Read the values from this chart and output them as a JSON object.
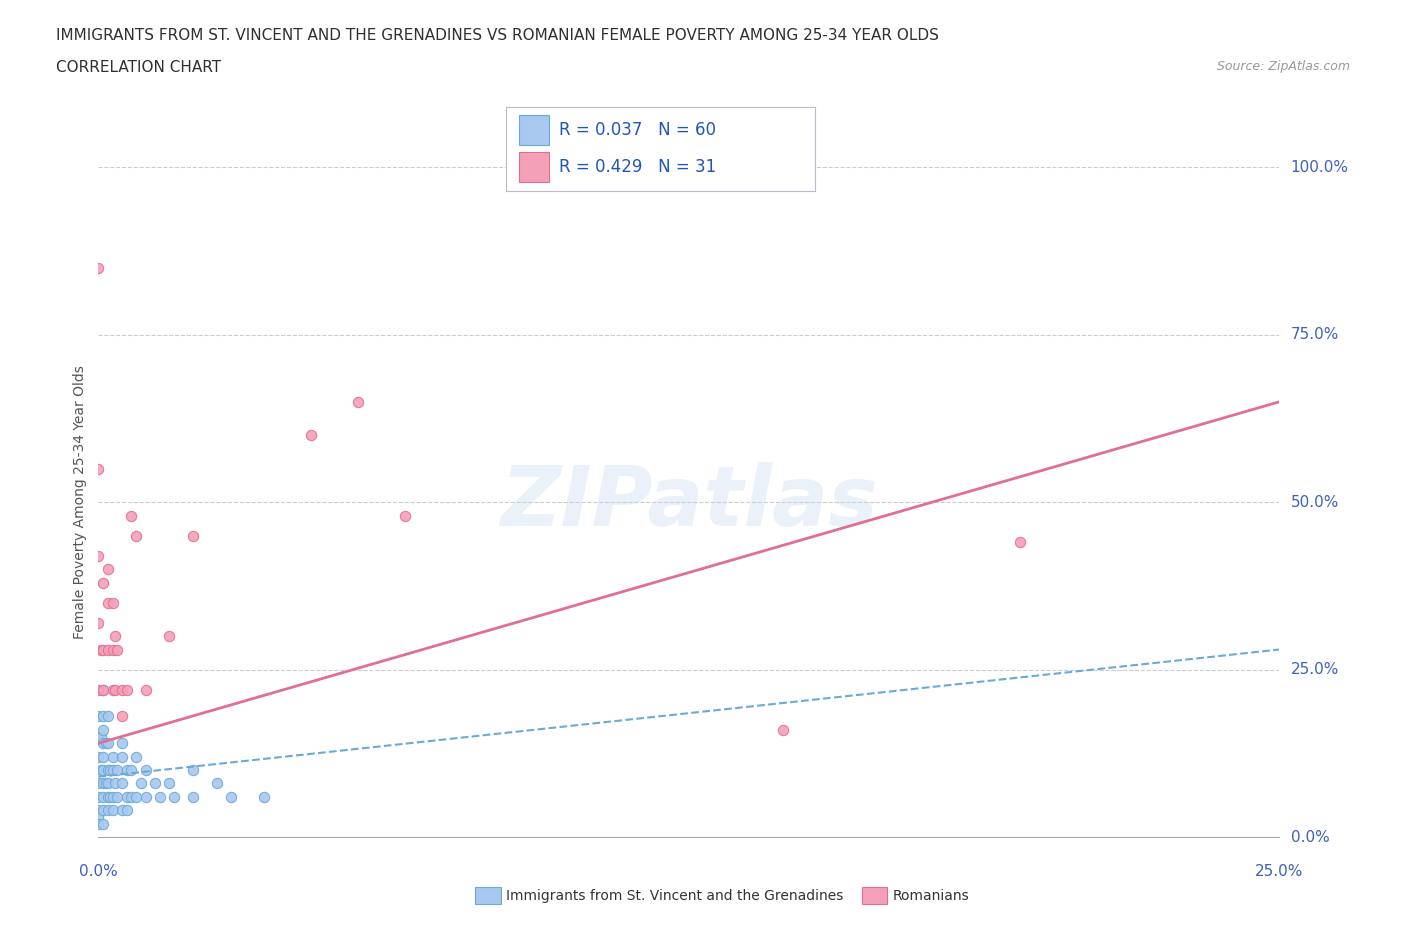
{
  "title_line1": "IMMIGRANTS FROM ST. VINCENT AND THE GRENADINES VS ROMANIAN FEMALE POVERTY AMONG 25-34 YEAR OLDS",
  "title_line2": "CORRELATION CHART",
  "source": "Source: ZipAtlas.com",
  "ylabel": "Female Poverty Among 25-34 Year Olds",
  "y_ticks_labels": [
    "0.0%",
    "25.0%",
    "50.0%",
    "75.0%",
    "100.0%"
  ],
  "y_tick_vals": [
    0,
    25,
    50,
    75,
    100
  ],
  "x_range": [
    0,
    25
  ],
  "y_range": [
    0,
    100
  ],
  "watermark_text": "ZIPatlas",
  "blue_R": 0.037,
  "blue_N": 60,
  "pink_R": 0.429,
  "pink_N": 31,
  "blue_color": "#a8c8f0",
  "pink_color": "#f4a0b8",
  "blue_edge": "#6aaad8",
  "pink_edge": "#e07090",
  "blue_scatter_x": [
    0.0,
    0.0,
    0.0,
    0.0,
    0.0,
    0.0,
    0.0,
    0.0,
    0.05,
    0.05,
    0.1,
    0.1,
    0.1,
    0.1,
    0.1,
    0.1,
    0.1,
    0.1,
    0.1,
    0.1,
    0.15,
    0.15,
    0.2,
    0.2,
    0.2,
    0.2,
    0.2,
    0.2,
    0.25,
    0.25,
    0.3,
    0.3,
    0.3,
    0.3,
    0.35,
    0.4,
    0.4,
    0.5,
    0.5,
    0.5,
    0.5,
    0.6,
    0.6,
    0.6,
    0.7,
    0.7,
    0.8,
    0.8,
    0.9,
    1.0,
    1.0,
    1.2,
    1.3,
    1.5,
    1.6,
    2.0,
    2.0,
    2.5,
    2.8,
    3.5
  ],
  "blue_scatter_y": [
    18.0,
    15.0,
    12.0,
    8.0,
    6.0,
    4.0,
    3.0,
    2.0,
    15.0,
    10.0,
    22.0,
    18.0,
    16.0,
    14.0,
    12.0,
    10.0,
    8.0,
    6.0,
    4.0,
    2.0,
    14.0,
    8.0,
    18.0,
    14.0,
    10.0,
    8.0,
    6.0,
    4.0,
    10.0,
    6.0,
    12.0,
    10.0,
    6.0,
    4.0,
    8.0,
    10.0,
    6.0,
    14.0,
    12.0,
    8.0,
    4.0,
    10.0,
    6.0,
    4.0,
    10.0,
    6.0,
    12.0,
    6.0,
    8.0,
    10.0,
    6.0,
    8.0,
    6.0,
    8.0,
    6.0,
    10.0,
    6.0,
    8.0,
    6.0,
    6.0
  ],
  "pink_scatter_x": [
    0.0,
    0.0,
    0.0,
    0.0,
    0.0,
    0.05,
    0.1,
    0.1,
    0.1,
    0.2,
    0.2,
    0.2,
    0.3,
    0.3,
    0.3,
    0.35,
    0.35,
    0.4,
    0.5,
    0.5,
    0.6,
    0.7,
    0.8,
    1.0,
    1.5,
    2.0,
    4.5,
    5.5,
    6.5,
    14.5,
    19.5
  ],
  "pink_scatter_y": [
    85.0,
    55.0,
    42.0,
    32.0,
    22.0,
    28.0,
    38.0,
    28.0,
    22.0,
    40.0,
    35.0,
    28.0,
    35.0,
    28.0,
    22.0,
    30.0,
    22.0,
    28.0,
    22.0,
    18.0,
    22.0,
    48.0,
    45.0,
    22.0,
    30.0,
    45.0,
    60.0,
    65.0,
    48.0,
    16.0,
    44.0
  ],
  "blue_trend_x0": 0,
  "blue_trend_x1": 25,
  "blue_trend_y0": 9.0,
  "blue_trend_y1": 28.0,
  "pink_trend_x0": 0,
  "pink_trend_x1": 25,
  "pink_trend_y0": 14.0,
  "pink_trend_y1": 65.0,
  "bg_color": "#ffffff",
  "grid_color": "#cccccc",
  "title_color": "#303030",
  "axis_label_color": "#4060c0",
  "legend_label_blue": "Immigrants from St. Vincent and the Grenadines",
  "legend_label_pink": "Romanians"
}
